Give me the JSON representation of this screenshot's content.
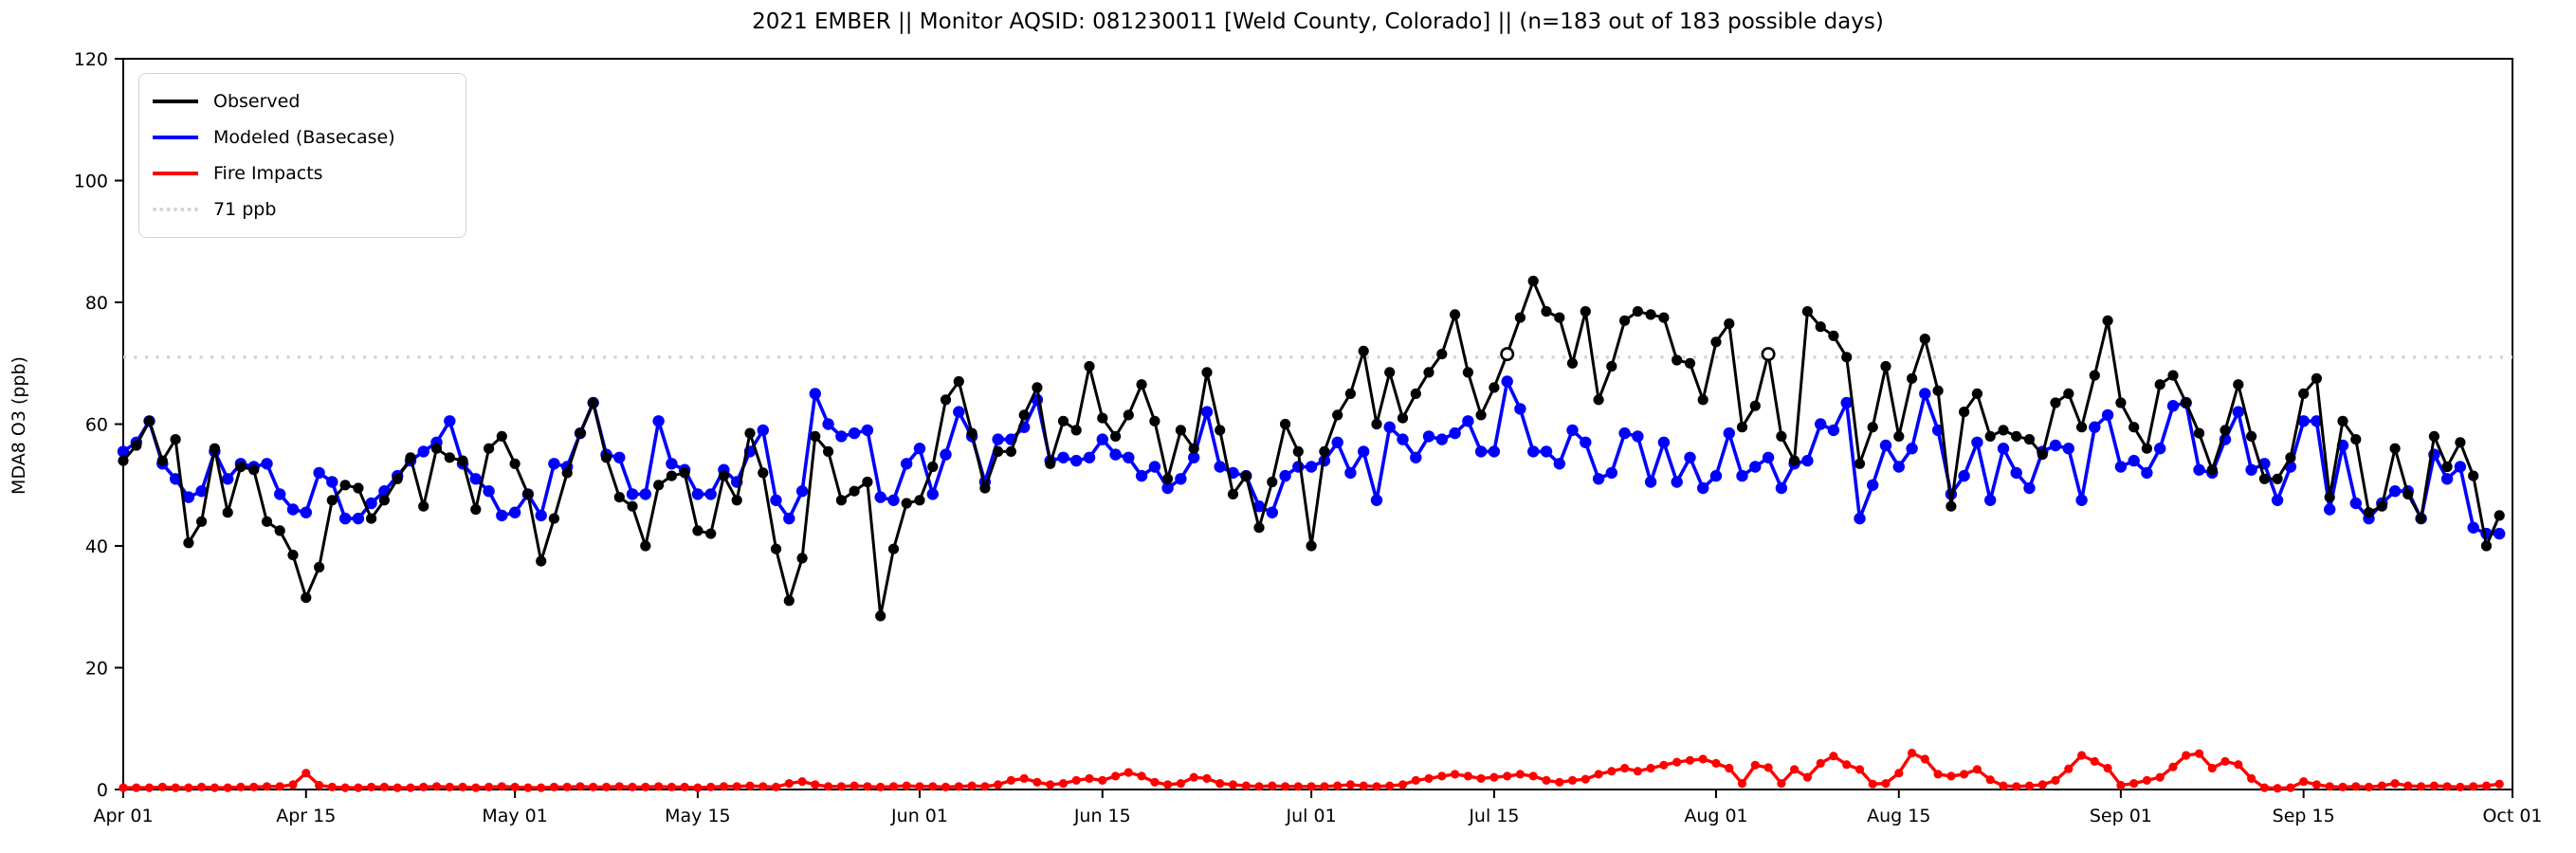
{
  "title": "2021 EMBER || Monitor AQSID: 081230011 [Weld County, Colorado] || (n=183 out of 183 possible days)",
  "chart_data": {
    "type": "line",
    "title": "2021 EMBER || Monitor AQSID: 081230011 [Weld County, Colorado] || (n=183 out of 183 possible days)",
    "xlabel": "",
    "ylabel": "MDA8 O3 (ppb)",
    "ylim": [
      0,
      120
    ],
    "y_ticks": [
      0,
      20,
      40,
      60,
      80,
      100,
      120
    ],
    "x_tick_labels": [
      "Apr 01",
      "Apr 15",
      "May 01",
      "May 15",
      "Jun 01",
      "Jun 15",
      "Jul 01",
      "Jul 15",
      "Aug 01",
      "Aug 15",
      "Sep 01",
      "Sep 15",
      "Oct 01"
    ],
    "x_tick_day_offsets": [
      0,
      14,
      30,
      44,
      61,
      75,
      91,
      105,
      122,
      136,
      153,
      167,
      183
    ],
    "n_days": 183,
    "grid": false,
    "legend_position": "upper-left",
    "threshold": {
      "value": 71,
      "label": "71 ppb",
      "color": "#d3d3d3",
      "style": "dotted"
    },
    "legend": [
      {
        "label": "Observed",
        "color": "#000000",
        "style": "solid"
      },
      {
        "label": "Modeled (Basecase)",
        "color": "#0000ff",
        "style": "solid"
      },
      {
        "label": "Fire Impacts",
        "color": "#ff0000",
        "style": "solid"
      },
      {
        "label": "71 ppb",
        "color": "#d3d3d3",
        "style": "dotted"
      }
    ],
    "observed_open_marker_day_indices": [
      106,
      126
    ],
    "series": [
      {
        "name": "Observed",
        "color": "#000000",
        "values": [
          54,
          56.5,
          60.5,
          54,
          57.5,
          40.5,
          44,
          56,
          45.5,
          53,
          52.5,
          44,
          42.5,
          38.5,
          31.5,
          36.5,
          47.5,
          50,
          49.5,
          44.5,
          47.5,
          51,
          54.5,
          46.5,
          56,
          54.5,
          54,
          46,
          56,
          58,
          53.5,
          48.5,
          37.5,
          44.5,
          52,
          58.5,
          63.5,
          54.5,
          48,
          46.5,
          40,
          50,
          51.5,
          52,
          42.5,
          42,
          51.5,
          47.5,
          58.5,
          52,
          39.5,
          31,
          38,
          58,
          55.5,
          47.5,
          49,
          50.5,
          28.5,
          39.5,
          47,
          47.5,
          53,
          64,
          67,
          58.5,
          49.5,
          55.5,
          55.5,
          61.5,
          66,
          53.5,
          60.5,
          59,
          69.5,
          61,
          58,
          61.5,
          66.5,
          60.5,
          51,
          59,
          56,
          68.5,
          59,
          48.5,
          51.5,
          43,
          50.5,
          60,
          55.5,
          40,
          55.5,
          61.5,
          65,
          72,
          60,
          68.5,
          61,
          65,
          68.5,
          71.5,
          78,
          68.5,
          61.5,
          66,
          71.5,
          77.5,
          83.5,
          78.5,
          77.5,
          70,
          78.5,
          64,
          69.5,
          77,
          78.5,
          78,
          77.5,
          70.5,
          70,
          64,
          73.5,
          76.5,
          59.5,
          63,
          71.5,
          58,
          54,
          78.5,
          76,
          74.5,
          71,
          53.5,
          59.5,
          69.5,
          58,
          67.5,
          74,
          65.5,
          46.5,
          62,
          65,
          58,
          59,
          58,
          57.5,
          55,
          63.5,
          65,
          59.5,
          68,
          77,
          63.5,
          59.5,
          56,
          66.5,
          68,
          63.5,
          58.5,
          52.5,
          59,
          66.5,
          58,
          51,
          51,
          54.5,
          65,
          67.5,
          48,
          60.5,
          57.5,
          45.5,
          46.5,
          56,
          48.5,
          44.5,
          58,
          53,
          57,
          51.5,
          40,
          45
        ]
      },
      {
        "name": "Modeled (Basecase)",
        "color": "#0000ff",
        "values": [
          55.5,
          57,
          60.5,
          53.5,
          51,
          48,
          49,
          55.5,
          51,
          53.5,
          53,
          53.5,
          48.5,
          46,
          45.5,
          52,
          50.5,
          44.5,
          44.5,
          47,
          49,
          51.5,
          54,
          55.5,
          57,
          60.5,
          53.5,
          51,
          49,
          45,
          45.5,
          48.5,
          45,
          53.5,
          53,
          58.5,
          63.5,
          55,
          54.5,
          48.5,
          48.5,
          60.5,
          53.5,
          52.5,
          48.5,
          48.5,
          52.5,
          50.5,
          55.5,
          59,
          47.5,
          44.5,
          49,
          65,
          60,
          58,
          58.5,
          59,
          48,
          47.5,
          53.5,
          56,
          48.5,
          55,
          62,
          58,
          50.5,
          57.5,
          57.5,
          59.5,
          64,
          54,
          54.5,
          54,
          54.5,
          57.5,
          55,
          54.5,
          51.5,
          53,
          49.5,
          51,
          54.5,
          62,
          53,
          52,
          51.5,
          46.5,
          45.5,
          51.5,
          53,
          53,
          54,
          57,
          52,
          55.5,
          47.5,
          59.5,
          57.5,
          54.5,
          58,
          57.5,
          58.5,
          60.5,
          55.5,
          55.5,
          67,
          62.5,
          55.5,
          55.5,
          53.5,
          59,
          57,
          51,
          52,
          58.5,
          58,
          50.5,
          57,
          50.5,
          54.5,
          49.5,
          51.5,
          58.5,
          51.5,
          53,
          54.5,
          49.5,
          53.5,
          54,
          60,
          59,
          63.5,
          44.5,
          50,
          56.5,
          53,
          56,
          65,
          59,
          48.5,
          51.5,
          57,
          47.5,
          56,
          52,
          49.5,
          55.5,
          56.5,
          56,
          47.5,
          59.5,
          61.5,
          53,
          54,
          52,
          56,
          63,
          63.5,
          52.5,
          52,
          57.5,
          62,
          52.5,
          53.5,
          47.5,
          53,
          60.5,
          60.5,
          46,
          56.5,
          47,
          44.5,
          47,
          49,
          49,
          44.5,
          55,
          51,
          53,
          43,
          42,
          42
        ]
      },
      {
        "name": "Fire Impacts",
        "color": "#ff0000",
        "values": [
          0.3,
          0.3,
          0.3,
          0.4,
          0.3,
          0.3,
          0.4,
          0.3,
          0.3,
          0.4,
          0.4,
          0.5,
          0.5,
          0.8,
          2.7,
          0.7,
          0.4,
          0.3,
          0.3,
          0.4,
          0.4,
          0.3,
          0.3,
          0.4,
          0.5,
          0.4,
          0.4,
          0.3,
          0.4,
          0.5,
          0.4,
          0.3,
          0.3,
          0.4,
          0.4,
          0.5,
          0.4,
          0.4,
          0.5,
          0.4,
          0.4,
          0.5,
          0.4,
          0.4,
          0.3,
          0.4,
          0.5,
          0.5,
          0.6,
          0.5,
          0.4,
          1.0,
          1.3,
          0.8,
          0.5,
          0.5,
          0.6,
          0.5,
          0.4,
          0.5,
          0.6,
          0.5,
          0.5,
          0.4,
          0.5,
          0.6,
          0.5,
          0.8,
          1.5,
          1.8,
          1.2,
          0.8,
          1.0,
          1.5,
          1.8,
          1.5,
          2.2,
          2.8,
          2.2,
          1.2,
          0.8,
          1.0,
          2.0,
          1.8,
          1.0,
          0.8,
          0.6,
          0.5,
          0.6,
          0.5,
          0.5,
          0.5,
          0.5,
          0.6,
          0.8,
          0.6,
          0.5,
          0.6,
          0.8,
          1.5,
          1.8,
          2.2,
          2.5,
          2.2,
          1.8,
          2.0,
          2.2,
          2.5,
          2.2,
          1.5,
          1.2,
          1.5,
          1.7,
          2.5,
          3.0,
          3.5,
          3.0,
          3.5,
          4.0,
          4.5,
          4.8,
          5.0,
          4.3,
          3.5,
          1.0,
          4.0,
          3.6,
          1.0,
          3.3,
          2.0,
          4.3,
          5.5,
          4.1,
          3.3,
          0.9,
          1.0,
          2.7,
          6.0,
          5.0,
          2.5,
          2.2,
          2.5,
          3.3,
          1.6,
          0.6,
          0.5,
          0.6,
          0.8,
          1.5,
          3.4,
          5.6,
          4.6,
          3.5,
          0.7,
          1.0,
          1.5,
          2.0,
          3.7,
          5.6,
          5.9,
          3.5,
          4.6,
          4.1,
          1.8,
          0.3,
          0.2,
          0.3,
          1.3,
          0.8,
          0.5,
          0.4,
          0.5,
          0.4,
          0.6,
          1.0,
          0.6,
          0.5,
          0.6,
          0.5,
          0.4,
          0.5,
          0.6,
          0.9
        ]
      }
    ]
  }
}
